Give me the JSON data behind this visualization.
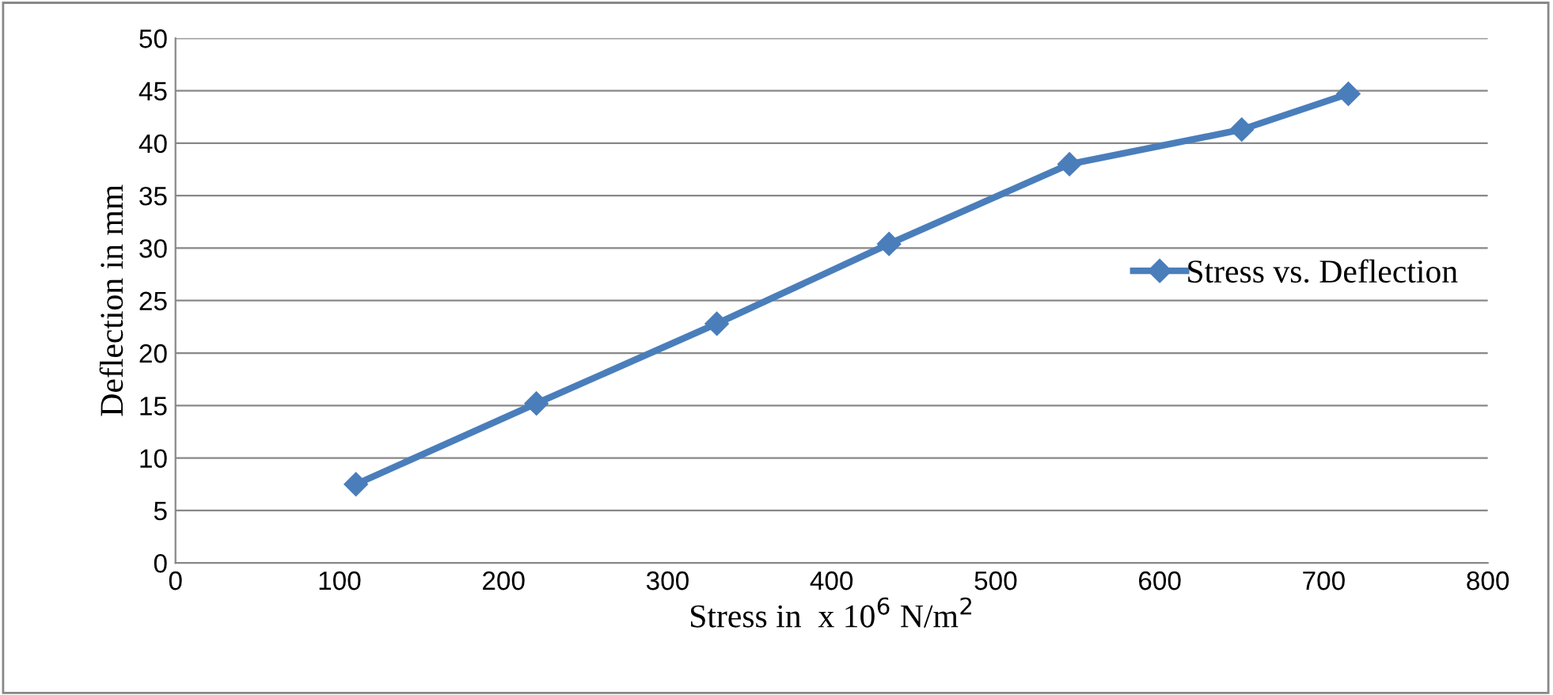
{
  "chart_data": {
    "type": "line",
    "xlabel": "Stress in  x 10$^{6}$ N/m$^{2}$",
    "ylabel": "Deflection in mm",
    "x": [
      110,
      220,
      330,
      435,
      545,
      650,
      715
    ],
    "series": [
      {
        "name": "Stress vs. Deflection",
        "color": "#4a7ebb",
        "values": [
          7.5,
          15.2,
          22.8,
          30.4,
          38,
          41.3,
          44.7
        ]
      }
    ],
    "xlim": [
      0,
      800
    ],
    "xticks": [
      0,
      100,
      200,
      300,
      400,
      500,
      600,
      700,
      800
    ],
    "ylim": [
      0,
      50
    ],
    "yticks": [
      0,
      5,
      10,
      15,
      20,
      25,
      30,
      35,
      40,
      45,
      50
    ],
    "grid": "y",
    "legend": "right",
    "marker": "diamond",
    "line_style": "solid"
  }
}
